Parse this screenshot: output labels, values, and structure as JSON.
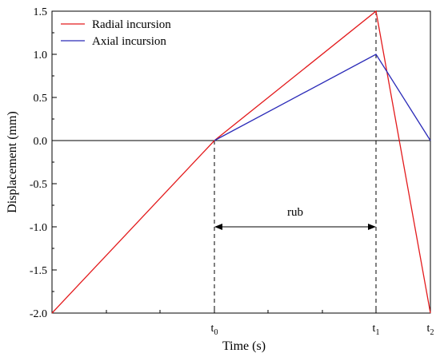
{
  "chart_data": {
    "type": "line",
    "title": "",
    "xlabel": "Time (s)",
    "ylabel": "Displacement (mm)",
    "ylim": [
      -2.0,
      1.5
    ],
    "y_ticks": [
      "-2.0",
      "-1.5",
      "-1.0",
      "-0.5",
      "0.0",
      "0.5",
      "1.0",
      "1.5"
    ],
    "x_ticks": [
      {
        "base": "t",
        "sub": "0"
      },
      {
        "base": "t",
        "sub": "1"
      },
      {
        "base": "t",
        "sub": "2"
      }
    ],
    "legend_position": "top-left",
    "series": [
      {
        "name": "Radial incursion",
        "color": "#e31a1c",
        "points": [
          [
            "origin",
            -2.0
          ],
          [
            "t0",
            0.0
          ],
          [
            "t1",
            1.5
          ],
          [
            "t2",
            -2.0
          ]
        ]
      },
      {
        "name": "Axial incursion",
        "color": "#2b2bb8",
        "points": [
          [
            "t0",
            0.0
          ],
          [
            "t1",
            1.0
          ],
          [
            "t2",
            0.0
          ]
        ]
      }
    ],
    "annotations": {
      "rub_label": "rub",
      "rub_span": [
        "t0",
        "t1"
      ]
    }
  }
}
